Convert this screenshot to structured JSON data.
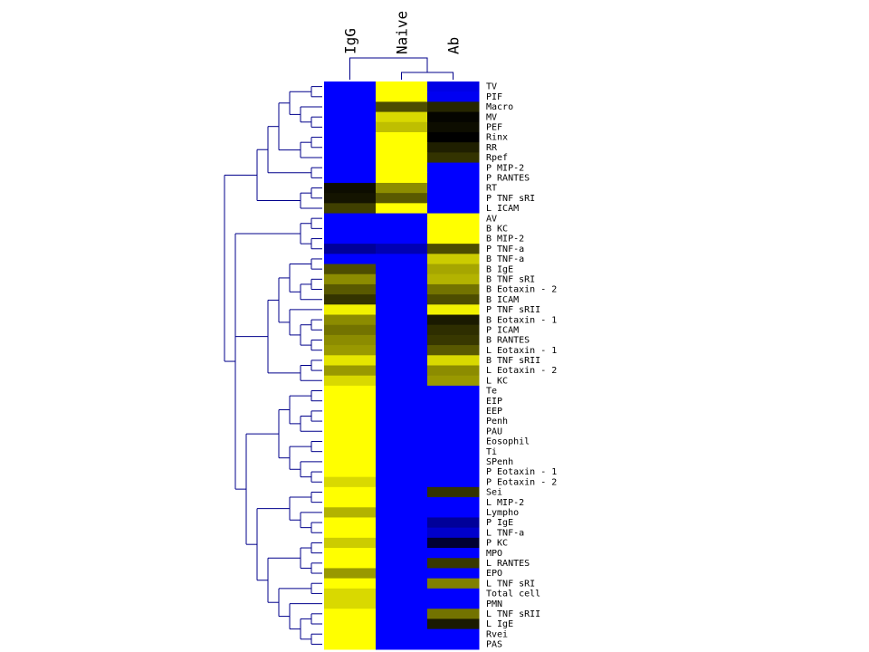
{
  "chart_data": {
    "type": "heatmap",
    "color_scale": {
      "low": "#0000FF",
      "mid": "#000000",
      "high": "#FFFF00"
    },
    "value_range": [
      -1,
      1
    ],
    "columns": [
      "IgG",
      "Naive",
      "Ab"
    ],
    "rows": [
      "TV",
      "PIF",
      "Macro",
      "MV",
      "PEF",
      "Rinx",
      "RR",
      "Rpef",
      "P MIP-2",
      "P RANTES",
      "RT",
      "P TNF sRI",
      "L ICAM",
      "AV",
      "B KC",
      "B MIP-2",
      "P TNF-a",
      "B TNF-a",
      "B IgE",
      "B TNF sRI",
      "B Eotaxin - 2",
      "B ICAM",
      "P TNF sRII",
      "B Eotaxin - 1",
      "P ICAM",
      "B RANTES",
      "L Eotaxin - 1",
      "B TNF sRII",
      "L Eotaxin - 2",
      "L KC",
      "Te",
      "EIP",
      "EEP",
      "Penh",
      "PAU",
      "Eosophil",
      "Ti",
      "SPenh",
      "P Eotaxin - 1",
      "P Eotaxin - 2",
      "Sei",
      "L MIP-2",
      "Lympho",
      "P IgE",
      "L TNF-a",
      "P KC",
      "MPO",
      "L RANTES",
      "EPO",
      "L TNF sRI",
      "Total cell",
      "PMN",
      "L TNF sRII",
      "L IgE",
      "Rvei",
      "PAS"
    ],
    "values": [
      [
        -1,
        1,
        -0.9
      ],
      [
        -1,
        1,
        -0.95
      ],
      [
        -1,
        0.3,
        0.15
      ],
      [
        -1,
        0.85,
        0.02
      ],
      [
        -1,
        0.75,
        0.05
      ],
      [
        -1,
        1,
        0.0
      ],
      [
        -1,
        1,
        0.12
      ],
      [
        -1,
        1,
        0.2
      ],
      [
        -1,
        1,
        -1
      ],
      [
        -1,
        1,
        -1
      ],
      [
        0.05,
        0.55,
        -1
      ],
      [
        0.08,
        0.35,
        -1
      ],
      [
        0.25,
        1,
        -1
      ],
      [
        -1,
        -1,
        1
      ],
      [
        -1,
        -1,
        1
      ],
      [
        -1,
        -1,
        1
      ],
      [
        -0.6,
        -0.7,
        0.3
      ],
      [
        -1,
        -1,
        0.8
      ],
      [
        0.3,
        -1,
        0.65
      ],
      [
        0.55,
        -1,
        0.7
      ],
      [
        0.35,
        -1,
        0.45
      ],
      [
        0.2,
        -1,
        0.3
      ],
      [
        0.95,
        -1,
        0.95
      ],
      [
        0.55,
        -1,
        0.1
      ],
      [
        0.45,
        -1,
        0.18
      ],
      [
        0.55,
        -1,
        0.22
      ],
      [
        0.6,
        -1,
        0.35
      ],
      [
        0.9,
        -1,
        0.85
      ],
      [
        0.6,
        -1,
        0.55
      ],
      [
        0.85,
        -1,
        0.6
      ],
      [
        1,
        -1,
        -1
      ],
      [
        1,
        -1,
        -1
      ],
      [
        1,
        -1,
        -1
      ],
      [
        1,
        -1,
        -1
      ],
      [
        1,
        -1,
        -1
      ],
      [
        1,
        -1,
        -1
      ],
      [
        1,
        -1,
        -1
      ],
      [
        1,
        -1,
        -1
      ],
      [
        1,
        -1,
        -1
      ],
      [
        0.85,
        -1,
        -1
      ],
      [
        1,
        -1,
        0.2
      ],
      [
        1,
        -1,
        -1
      ],
      [
        0.7,
        -1,
        -1
      ],
      [
        1,
        -1,
        -0.6
      ],
      [
        1,
        -1,
        -0.8
      ],
      [
        0.8,
        -1,
        -0.2
      ],
      [
        1,
        -1,
        -1
      ],
      [
        1,
        -1,
        0.22
      ],
      [
        0.6,
        -1,
        -1
      ],
      [
        1,
        -1,
        0.5
      ],
      [
        0.85,
        -1,
        -1
      ],
      [
        0.85,
        -1,
        -1
      ],
      [
        1,
        -1,
        0.45
      ],
      [
        1,
        -1,
        0.1
      ],
      [
        1,
        -1,
        -1
      ],
      [
        1,
        -1,
        -1
      ]
    ],
    "col_dendrogram": "IgG joins (Naive, Ab) cluster",
    "row_dendrogram": "hierarchical clustering, rows in leaf order"
  }
}
